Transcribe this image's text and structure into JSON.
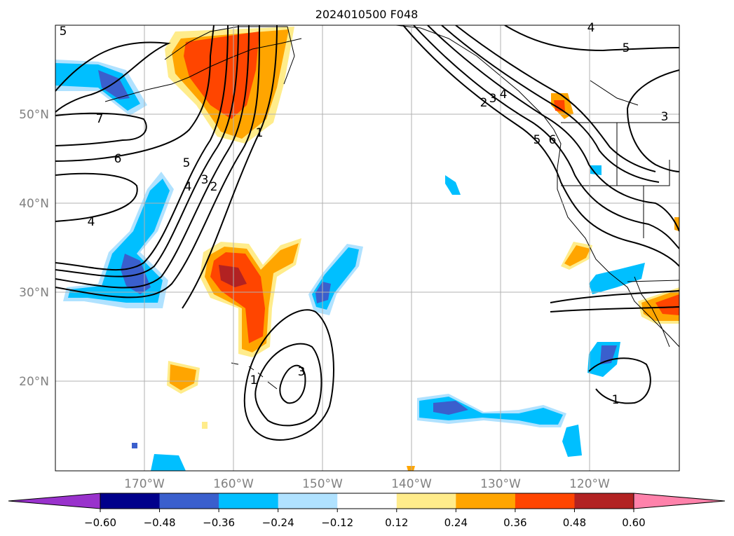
{
  "title": "2024010500 F048",
  "lat_labels": [
    "50°N",
    "40°N",
    "30°N",
    "20°N"
  ],
  "lon_labels": [
    "170°W",
    "160°W",
    "150°W",
    "140°W",
    "130°W",
    "120°W"
  ],
  "colorbar": {
    "ticks": [
      "−0.60",
      "−0.48",
      "−0.36",
      "−0.24",
      "−0.12",
      "0.12",
      "0.24",
      "0.36",
      "0.48",
      "0.60"
    ],
    "colors": [
      "#9932cc",
      "#00008b",
      "#3a5fcd",
      "#00bfff",
      "#b0e2ff",
      "#ffffff",
      "#ffec8b",
      "#ffa500",
      "#ff4500",
      "#b22222",
      "#ff82ab"
    ]
  },
  "contour_labels": [
    "5",
    "7",
    "6",
    "4",
    "5",
    "4",
    "3",
    "2",
    "1",
    "2",
    "3",
    "4",
    "5",
    "6",
    "5",
    "3",
    "1",
    "3",
    "1",
    "4"
  ]
}
